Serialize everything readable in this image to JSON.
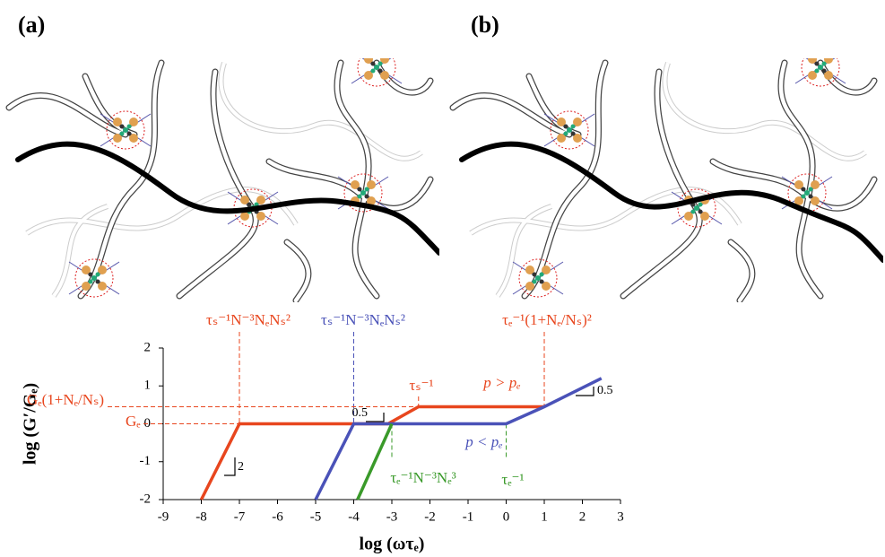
{
  "panels": [
    {
      "label": "(a)"
    },
    {
      "label": "(b)"
    }
  ],
  "chart_data": {
    "type": "line",
    "xlabel": "log (ωτₑ)",
    "ylabel": "log (G′/Gₑ)",
    "xlim": [
      -9,
      3
    ],
    "ylim": [
      -2,
      2
    ],
    "xticks": [
      -9,
      -8,
      -7,
      -6,
      -5,
      -4,
      -3,
      -2,
      -1,
      0,
      1,
      2,
      3
    ],
    "yticks": [
      -2,
      -1,
      0,
      1,
      2
    ],
    "series": [
      {
        "color": "#e8461e",
        "x": [
          -8,
          -7,
          -3.1,
          -2.3,
          1.0
        ],
        "values": [
          -2,
          0,
          0,
          0.45,
          0.45
        ]
      },
      {
        "color": "#4a52b8",
        "x": [
          -5,
          -4,
          0,
          1.0,
          2.5
        ],
        "values": [
          -2,
          0,
          0,
          0.45,
          1.2
        ]
      },
      {
        "color": "#3a9a2a",
        "x": [
          -3.9,
          -3
        ],
        "values": [
          -2,
          0
        ]
      }
    ],
    "annotations": [
      {
        "text": "τₛ⁻¹N⁻³NₑNₛ²",
        "color": "#e8461e"
      },
      {
        "text": "τₛ⁻¹N⁻³NₑNₛ²",
        "color": "#4a52b8"
      },
      {
        "text": "τₑ⁻¹(1+Nₑ/Nₛ)²",
        "color": "#e8461e"
      },
      {
        "text": "τₛ⁻¹",
        "color": "#e8461e"
      },
      {
        "text": "p > pₑ",
        "color": "#e8461e"
      },
      {
        "text": "p < pₑ",
        "color": "#4a52b8"
      },
      {
        "text": "τₑ⁻¹N⁻³Nₑ³",
        "color": "#3a9a2a"
      },
      {
        "text": "τₑ⁻¹",
        "color": "#3a9a2a"
      },
      {
        "text": "Gₑ(1+Nₑ/Nₛ)",
        "color": "#e8461e"
      },
      {
        "text": "Gₑ",
        "color": "#e8461e"
      },
      {
        "text": "2",
        "color": "#000000"
      },
      {
        "text": "0.5",
        "color": "#000000"
      },
      {
        "text": "0.5",
        "color": "#000000"
      }
    ]
  }
}
